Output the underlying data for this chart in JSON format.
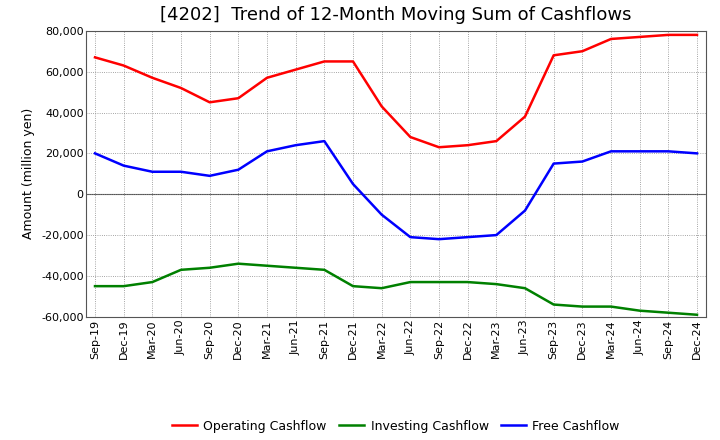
{
  "title": "[4202]  Trend of 12-Month Moving Sum of Cashflows",
  "ylabel": "Amount (million yen)",
  "ylim": [
    -60000,
    80000
  ],
  "yticks": [
    -60000,
    -40000,
    -20000,
    0,
    20000,
    40000,
    60000,
    80000
  ],
  "labels": [
    "Sep-19",
    "Dec-19",
    "Mar-20",
    "Jun-20",
    "Sep-20",
    "Dec-20",
    "Mar-21",
    "Jun-21",
    "Sep-21",
    "Dec-21",
    "Mar-22",
    "Jun-22",
    "Sep-22",
    "Dec-22",
    "Mar-23",
    "Jun-23",
    "Sep-23",
    "Dec-23",
    "Mar-24",
    "Jun-24",
    "Sep-24",
    "Dec-24"
  ],
  "operating": [
    67000,
    63000,
    57000,
    52000,
    45000,
    47000,
    57000,
    61000,
    65000,
    65000,
    43000,
    28000,
    23000,
    24000,
    26000,
    38000,
    68000,
    70000,
    76000,
    77000,
    78000,
    78000
  ],
  "investing": [
    -45000,
    -45000,
    -43000,
    -37000,
    -36000,
    -34000,
    -35000,
    -36000,
    -37000,
    -45000,
    -46000,
    -43000,
    -43000,
    -43000,
    -44000,
    -46000,
    -54000,
    -55000,
    -55000,
    -57000,
    -58000,
    -59000
  ],
  "free": [
    20000,
    14000,
    11000,
    11000,
    9000,
    12000,
    21000,
    24000,
    26000,
    5000,
    -10000,
    -21000,
    -22000,
    -21000,
    -20000,
    -8000,
    15000,
    16000,
    21000,
    21000,
    21000,
    20000
  ],
  "operating_color": "#FF0000",
  "investing_color": "#008000",
  "free_color": "#0000FF",
  "bg_color": "#FFFFFF",
  "plot_bg_color": "#FFFFFF",
  "grid_color": "#888888",
  "line_width": 1.8,
  "title_fontsize": 13,
  "legend_fontsize": 9,
  "tick_fontsize": 8,
  "ylabel_fontsize": 9
}
